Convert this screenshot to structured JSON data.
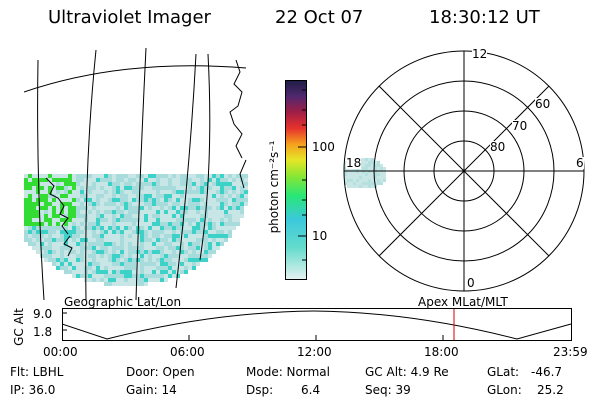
{
  "header": {
    "instrument": "Ultraviolet Imager",
    "date": "22 Oct 07",
    "time": "18:30:12 UT"
  },
  "colorbar": {
    "unit_label": "photon cm⁻²s⁻¹",
    "ticks": [
      "100",
      "10"
    ],
    "scale": "log"
  },
  "polar_plot": {
    "mlt_labels": [
      "12",
      "18",
      "6",
      "0"
    ],
    "mlat_labels": [
      "60",
      "70",
      "80"
    ]
  },
  "panel_labels": {
    "left": "Geographic Lat/Lon",
    "right": "Apex MLat/MLT"
  },
  "orbit_plot": {
    "ylabel": "GC Alt",
    "yticks": [
      "9.0",
      "1.8"
    ],
    "xticks": [
      "00:00",
      "06:00",
      "12:00",
      "18:00",
      "23:59"
    ],
    "current_time_marker": "18:30"
  },
  "status": {
    "flt": "Flt: LBHL",
    "ip": "IP: 36.0",
    "door": "Door: Open",
    "gain": "Gain: 14",
    "mode": "Mode: Normal",
    "dsp_label": "Dsp:",
    "dsp_value": "6.4",
    "gc_alt": "GC Alt: 4.9 Re",
    "seq": "Seq: 39",
    "glat_label": "GLat:",
    "glat_value": "-46.7",
    "glon_label": "GLon:",
    "glon_value": "25.2"
  },
  "colors": {
    "marker": "#d40000",
    "aurora_low": "#c8e6e6",
    "aurora_mid": "#3cd2c8",
    "aurora_high": "#32dc32"
  }
}
